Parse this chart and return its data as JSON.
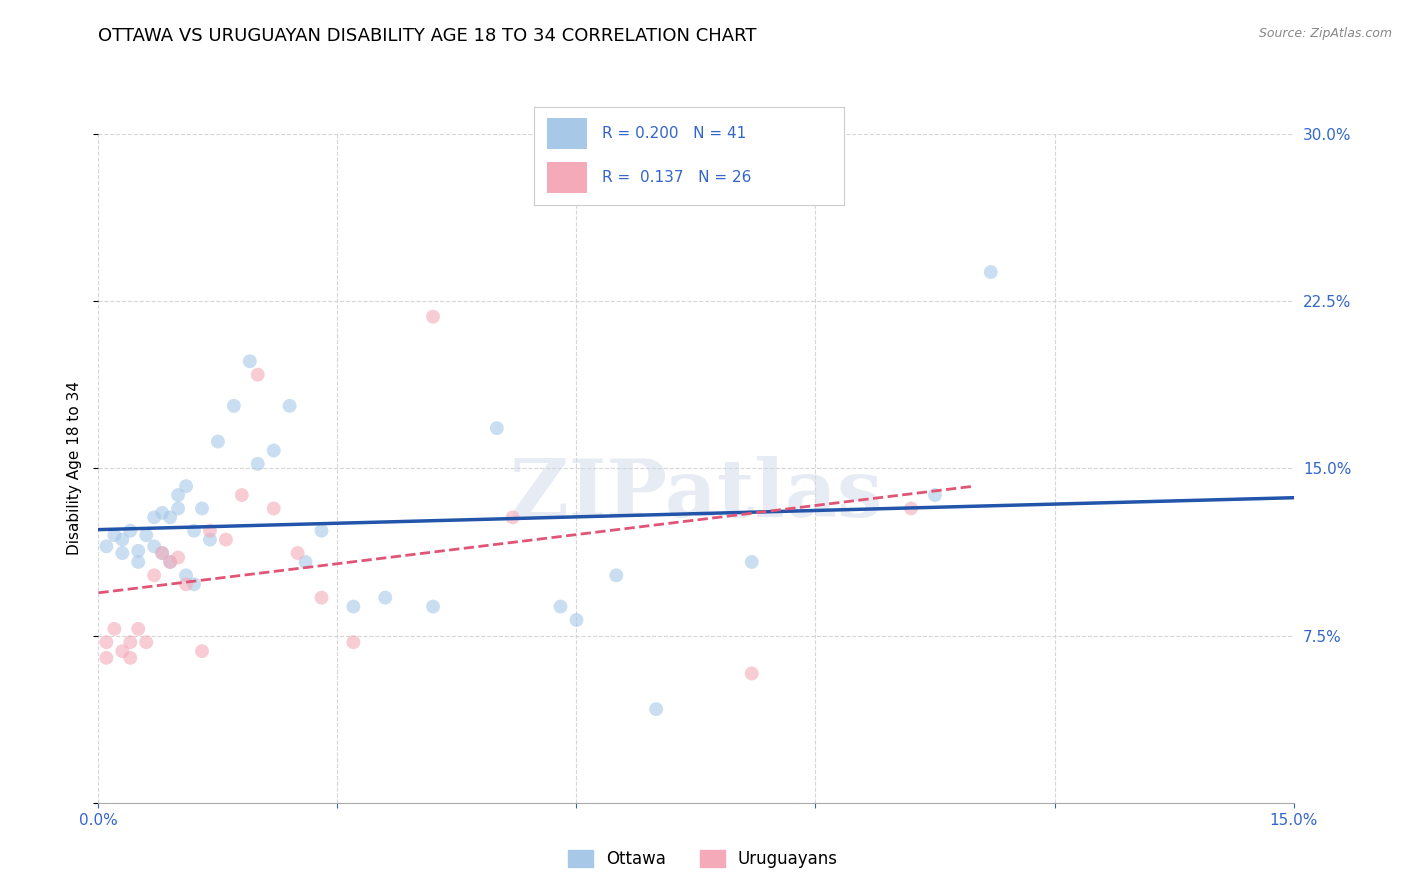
{
  "title": "OTTAWA VS URUGUAYAN DISABILITY AGE 18 TO 34 CORRELATION CHART",
  "source": "Source: ZipAtlas.com",
  "ylabel": "Disability Age 18 to 34",
  "xlim": [
    0.0,
    0.15
  ],
  "ylim": [
    0.0,
    0.3
  ],
  "ottawa_R": 0.2,
  "ottawa_N": 41,
  "uruguayan_R": 0.137,
  "uruguayan_N": 26,
  "ottawa_color": "#a8c8e8",
  "uruguayan_color": "#f4aab8",
  "ottawa_line_color": "#2255aa",
  "uruguayan_line_color": "#e05575",
  "background_color": "#ffffff",
  "grid_color": "#cccccc",
  "ottawa_x": [
    0.001,
    0.002,
    0.003,
    0.003,
    0.004,
    0.005,
    0.005,
    0.006,
    0.007,
    0.007,
    0.008,
    0.008,
    0.009,
    0.009,
    0.01,
    0.01,
    0.011,
    0.011,
    0.012,
    0.012,
    0.013,
    0.014,
    0.015,
    0.017,
    0.019,
    0.02,
    0.022,
    0.024,
    0.026,
    0.028,
    0.032,
    0.036,
    0.042,
    0.05,
    0.058,
    0.06,
    0.065,
    0.07,
    0.082,
    0.105,
    0.112
  ],
  "ottawa_y": [
    0.115,
    0.12,
    0.112,
    0.118,
    0.122,
    0.108,
    0.113,
    0.12,
    0.115,
    0.128,
    0.112,
    0.13,
    0.128,
    0.108,
    0.132,
    0.138,
    0.102,
    0.142,
    0.098,
    0.122,
    0.132,
    0.118,
    0.162,
    0.178,
    0.198,
    0.152,
    0.158,
    0.178,
    0.108,
    0.122,
    0.088,
    0.092,
    0.088,
    0.168,
    0.088,
    0.082,
    0.102,
    0.042,
    0.108,
    0.138,
    0.238
  ],
  "uruguayan_x": [
    0.001,
    0.001,
    0.002,
    0.003,
    0.004,
    0.004,
    0.005,
    0.006,
    0.007,
    0.008,
    0.009,
    0.01,
    0.011,
    0.013,
    0.014,
    0.016,
    0.018,
    0.02,
    0.022,
    0.025,
    0.028,
    0.032,
    0.042,
    0.052,
    0.082,
    0.102
  ],
  "uruguayan_y": [
    0.072,
    0.065,
    0.078,
    0.068,
    0.072,
    0.065,
    0.078,
    0.072,
    0.102,
    0.112,
    0.108,
    0.11,
    0.098,
    0.068,
    0.122,
    0.118,
    0.138,
    0.192,
    0.132,
    0.112,
    0.092,
    0.072,
    0.218,
    0.128,
    0.058,
    0.132
  ],
  "marker_size": 100,
  "marker_alpha": 0.6,
  "title_fontsize": 13,
  "label_fontsize": 11,
  "tick_fontsize": 11,
  "legend_fontsize": 12,
  "tick_color": "#3366cc"
}
